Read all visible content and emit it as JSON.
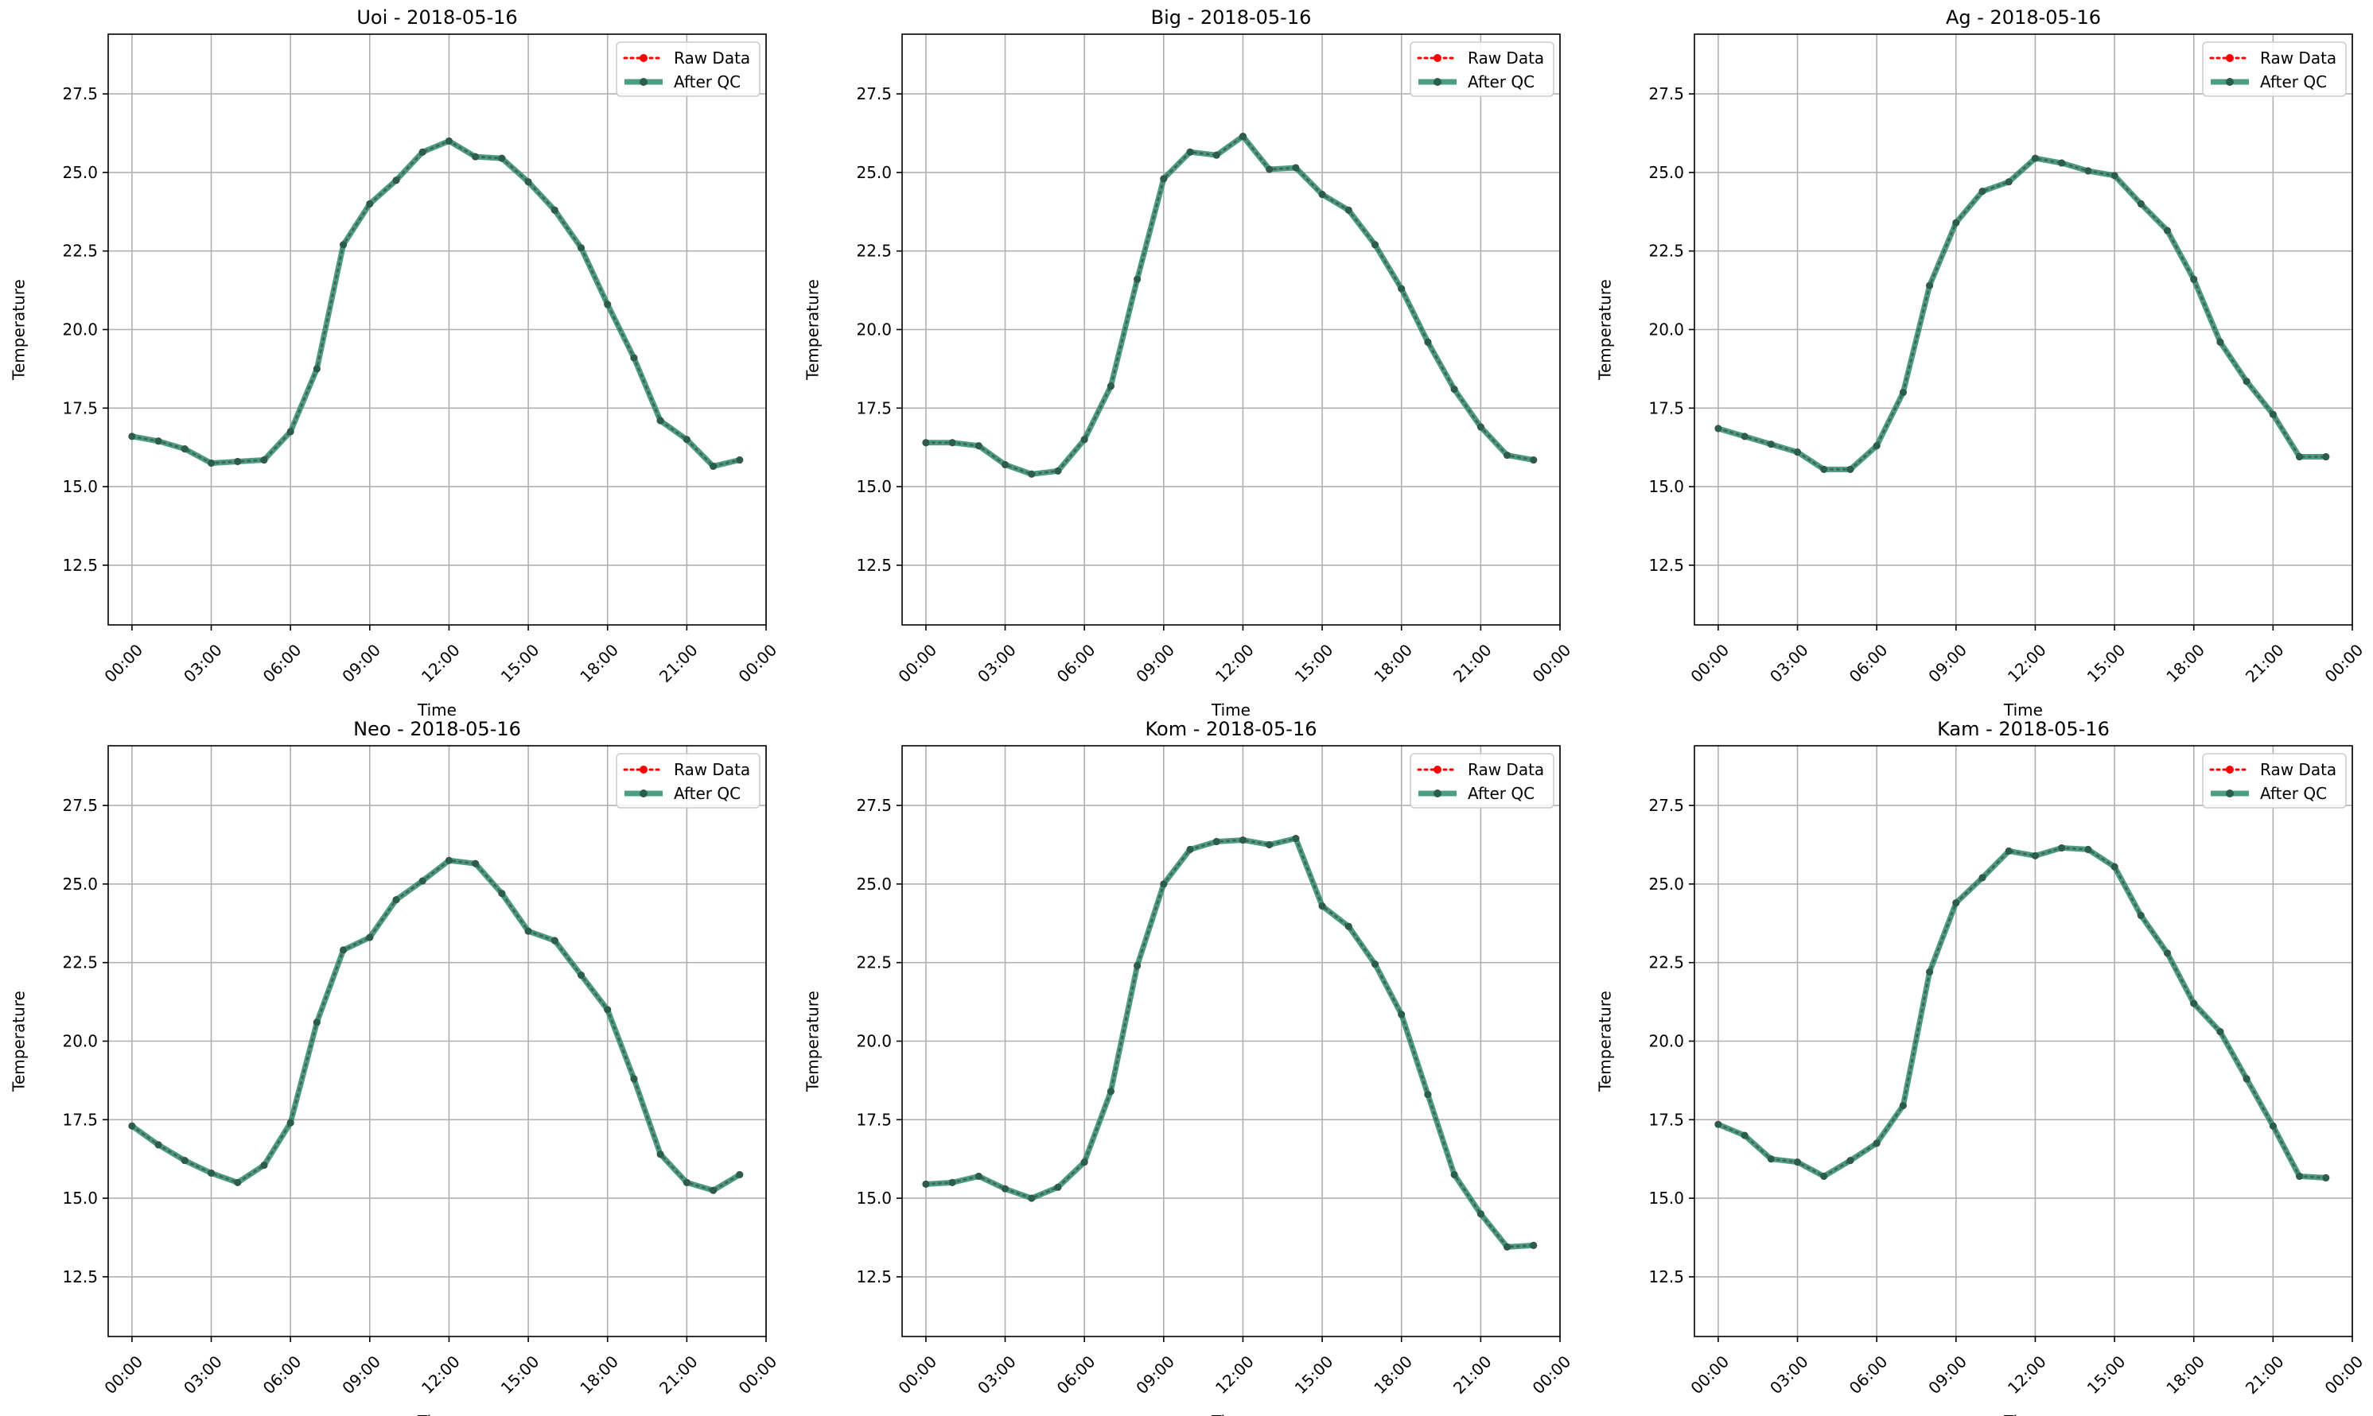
{
  "legend": {
    "raw_label": "Raw Data",
    "qc_label": "After QC"
  },
  "colors": {
    "raw": "#ff0000",
    "qc": "#2e8b6e",
    "qc_marker": "#2b5d4b",
    "grid": "#b0b0b0"
  },
  "chart_data": [
    {
      "type": "line",
      "title": "Uoi - 2018-05-16",
      "xlabel": "Time",
      "ylabel": "Temperature",
      "x_ticks": [
        "00:00",
        "03:00",
        "06:00",
        "09:00",
        "12:00",
        "15:00",
        "18:00",
        "21:00",
        "00:00"
      ],
      "y_ticks": [
        "12.5",
        "15.0",
        "17.5",
        "20.0",
        "22.5",
        "25.0",
        "27.5"
      ],
      "ylim": [
        10.6,
        29.4
      ],
      "xlim_hours": [
        -0.9,
        24.0
      ],
      "grid": true,
      "legend_position": "upper right",
      "x_hours": [
        0,
        1,
        2,
        3,
        4,
        5,
        6,
        7,
        8,
        9,
        10,
        11,
        12,
        13,
        14,
        15,
        16,
        17,
        18,
        19,
        20,
        21,
        22,
        23
      ],
      "series": [
        {
          "name": "Raw Data",
          "values": [
            16.6,
            16.45,
            16.2,
            15.75,
            15.8,
            15.85,
            16.75,
            18.75,
            22.7,
            24.0,
            24.75,
            25.65,
            26.0,
            25.5,
            25.45,
            24.7,
            23.8,
            22.6,
            20.8,
            19.1,
            17.1,
            16.5,
            15.65,
            15.85
          ]
        },
        {
          "name": "After QC",
          "values": [
            16.6,
            16.45,
            16.2,
            15.75,
            15.8,
            15.85,
            16.75,
            18.75,
            22.7,
            24.0,
            24.75,
            25.65,
            26.0,
            25.5,
            25.45,
            24.7,
            23.8,
            22.6,
            20.8,
            19.1,
            17.1,
            16.5,
            15.65,
            15.85
          ]
        }
      ]
    },
    {
      "type": "line",
      "title": "Big - 2018-05-16",
      "xlabel": "Time",
      "ylabel": "Temperature",
      "x_ticks": [
        "00:00",
        "03:00",
        "06:00",
        "09:00",
        "12:00",
        "15:00",
        "18:00",
        "21:00",
        "00:00"
      ],
      "y_ticks": [
        "12.5",
        "15.0",
        "17.5",
        "20.0",
        "22.5",
        "25.0",
        "27.5"
      ],
      "ylim": [
        10.6,
        29.4
      ],
      "xlim_hours": [
        -0.9,
        24.0
      ],
      "grid": true,
      "legend_position": "upper right",
      "x_hours": [
        0,
        1,
        2,
        3,
        4,
        5,
        6,
        7,
        8,
        9,
        10,
        11,
        12,
        13,
        14,
        15,
        16,
        17,
        18,
        19,
        20,
        21,
        22,
        23
      ],
      "series": [
        {
          "name": "Raw Data",
          "values": [
            16.4,
            16.4,
            16.3,
            15.7,
            15.4,
            15.5,
            16.5,
            18.2,
            21.6,
            24.8,
            25.65,
            25.55,
            26.15,
            25.1,
            25.15,
            24.3,
            23.8,
            22.7,
            21.3,
            19.6,
            18.1,
            16.9,
            16.0,
            15.85
          ]
        },
        {
          "name": "After QC",
          "values": [
            16.4,
            16.4,
            16.3,
            15.7,
            15.4,
            15.5,
            16.5,
            18.2,
            21.6,
            24.8,
            25.65,
            25.55,
            26.15,
            25.1,
            25.15,
            24.3,
            23.8,
            22.7,
            21.3,
            19.6,
            18.1,
            16.9,
            16.0,
            15.85
          ]
        }
      ]
    },
    {
      "type": "line",
      "title": "Ag - 2018-05-16",
      "xlabel": "Time",
      "ylabel": "Temperature",
      "x_ticks": [
        "00:00",
        "03:00",
        "06:00",
        "09:00",
        "12:00",
        "15:00",
        "18:00",
        "21:00",
        "00:00"
      ],
      "y_ticks": [
        "12.5",
        "15.0",
        "17.5",
        "20.0",
        "22.5",
        "25.0",
        "27.5"
      ],
      "ylim": [
        10.6,
        29.4
      ],
      "xlim_hours": [
        -0.9,
        24.0
      ],
      "grid": true,
      "legend_position": "upper right",
      "x_hours": [
        0,
        1,
        2,
        3,
        4,
        5,
        6,
        7,
        8,
        9,
        10,
        11,
        12,
        13,
        14,
        15,
        16,
        17,
        18,
        19,
        20,
        21,
        22,
        23
      ],
      "series": [
        {
          "name": "Raw Data",
          "values": [
            16.85,
            16.6,
            16.35,
            16.1,
            15.55,
            15.55,
            16.3,
            18.0,
            21.4,
            23.4,
            24.4,
            24.7,
            25.45,
            25.3,
            25.05,
            24.9,
            24.0,
            23.15,
            21.6,
            19.6,
            18.35,
            17.3,
            15.95,
            15.95
          ]
        },
        {
          "name": "After QC",
          "values": [
            16.85,
            16.6,
            16.35,
            16.1,
            15.55,
            15.55,
            16.3,
            18.0,
            21.4,
            23.4,
            24.4,
            24.7,
            25.45,
            25.3,
            25.05,
            24.9,
            24.0,
            23.15,
            21.6,
            19.6,
            18.35,
            17.3,
            15.95,
            15.95
          ]
        }
      ]
    },
    {
      "type": "line",
      "title": "Neo - 2018-05-16",
      "xlabel": "Time",
      "ylabel": "Temperature",
      "x_ticks": [
        "00:00",
        "03:00",
        "06:00",
        "09:00",
        "12:00",
        "15:00",
        "18:00",
        "21:00",
        "00:00"
      ],
      "y_ticks": [
        "12.5",
        "15.0",
        "17.5",
        "20.0",
        "22.5",
        "25.0",
        "27.5"
      ],
      "ylim": [
        10.6,
        29.4
      ],
      "xlim_hours": [
        -0.9,
        24.0
      ],
      "grid": true,
      "legend_position": "upper right",
      "x_hours": [
        0,
        1,
        2,
        3,
        4,
        5,
        6,
        7,
        8,
        9,
        10,
        11,
        12,
        13,
        14,
        15,
        16,
        17,
        18,
        19,
        20,
        21,
        22,
        23
      ],
      "series": [
        {
          "name": "Raw Data",
          "values": [
            17.3,
            16.7,
            16.2,
            15.8,
            15.5,
            16.05,
            17.4,
            20.6,
            22.9,
            23.3,
            24.5,
            25.1,
            25.75,
            25.65,
            24.7,
            23.5,
            23.2,
            22.1,
            21.0,
            18.8,
            16.4,
            15.5,
            15.25,
            15.75
          ]
        },
        {
          "name": "After QC",
          "values": [
            17.3,
            16.7,
            16.2,
            15.8,
            15.5,
            16.05,
            17.4,
            20.6,
            22.9,
            23.3,
            24.5,
            25.1,
            25.75,
            25.65,
            24.7,
            23.5,
            23.2,
            22.1,
            21.0,
            18.8,
            16.4,
            15.5,
            15.25,
            15.75
          ]
        }
      ]
    },
    {
      "type": "line",
      "title": "Kom - 2018-05-16",
      "xlabel": "Time",
      "ylabel": "Temperature",
      "x_ticks": [
        "00:00",
        "03:00",
        "06:00",
        "09:00",
        "12:00",
        "15:00",
        "18:00",
        "21:00",
        "00:00"
      ],
      "y_ticks": [
        "12.5",
        "15.0",
        "17.5",
        "20.0",
        "22.5",
        "25.0",
        "27.5"
      ],
      "ylim": [
        10.6,
        29.4
      ],
      "xlim_hours": [
        -0.9,
        24.0
      ],
      "grid": true,
      "legend_position": "upper right",
      "x_hours": [
        0,
        1,
        2,
        3,
        4,
        5,
        6,
        7,
        8,
        9,
        10,
        11,
        12,
        13,
        14,
        15,
        16,
        17,
        18,
        19,
        20,
        21,
        22,
        23
      ],
      "series": [
        {
          "name": "Raw Data",
          "values": [
            15.45,
            15.5,
            15.7,
            15.3,
            15.0,
            15.35,
            16.15,
            18.4,
            22.4,
            25.0,
            26.1,
            26.35,
            26.4,
            26.25,
            26.45,
            24.3,
            23.65,
            22.45,
            20.85,
            18.3,
            15.75,
            14.5,
            13.45,
            13.5
          ]
        },
        {
          "name": "After QC",
          "values": [
            15.45,
            15.5,
            15.7,
            15.3,
            15.0,
            15.35,
            16.15,
            18.4,
            22.4,
            25.0,
            26.1,
            26.35,
            26.4,
            26.25,
            26.45,
            24.3,
            23.65,
            22.45,
            20.85,
            18.3,
            15.75,
            14.5,
            13.45,
            13.5
          ]
        }
      ]
    },
    {
      "type": "line",
      "title": "Kam - 2018-05-16",
      "xlabel": "Time",
      "ylabel": "Temperature",
      "x_ticks": [
        "00:00",
        "03:00",
        "06:00",
        "09:00",
        "12:00",
        "15:00",
        "18:00",
        "21:00",
        "00:00"
      ],
      "y_ticks": [
        "12.5",
        "15.0",
        "17.5",
        "20.0",
        "22.5",
        "25.0",
        "27.5"
      ],
      "ylim": [
        10.6,
        29.4
      ],
      "xlim_hours": [
        -0.9,
        24.0
      ],
      "grid": true,
      "legend_position": "upper right",
      "x_hours": [
        0,
        1,
        2,
        3,
        4,
        5,
        6,
        7,
        8,
        9,
        10,
        11,
        12,
        13,
        14,
        15,
        16,
        17,
        18,
        19,
        20,
        21,
        22,
        23
      ],
      "series": [
        {
          "name": "Raw Data",
          "values": [
            17.35,
            17.0,
            16.25,
            16.15,
            15.7,
            16.2,
            16.75,
            17.95,
            22.2,
            24.4,
            25.2,
            26.05,
            25.9,
            26.15,
            26.1,
            25.55,
            24.0,
            22.8,
            21.2,
            20.3,
            18.8,
            17.3,
            15.7,
            15.65
          ]
        },
        {
          "name": "After QC",
          "values": [
            17.35,
            17.0,
            16.25,
            16.15,
            15.7,
            16.2,
            16.75,
            17.95,
            22.2,
            24.4,
            25.2,
            26.05,
            25.9,
            26.15,
            26.1,
            25.55,
            24.0,
            22.8,
            21.2,
            20.3,
            18.8,
            17.3,
            15.7,
            15.65
          ]
        }
      ]
    }
  ]
}
